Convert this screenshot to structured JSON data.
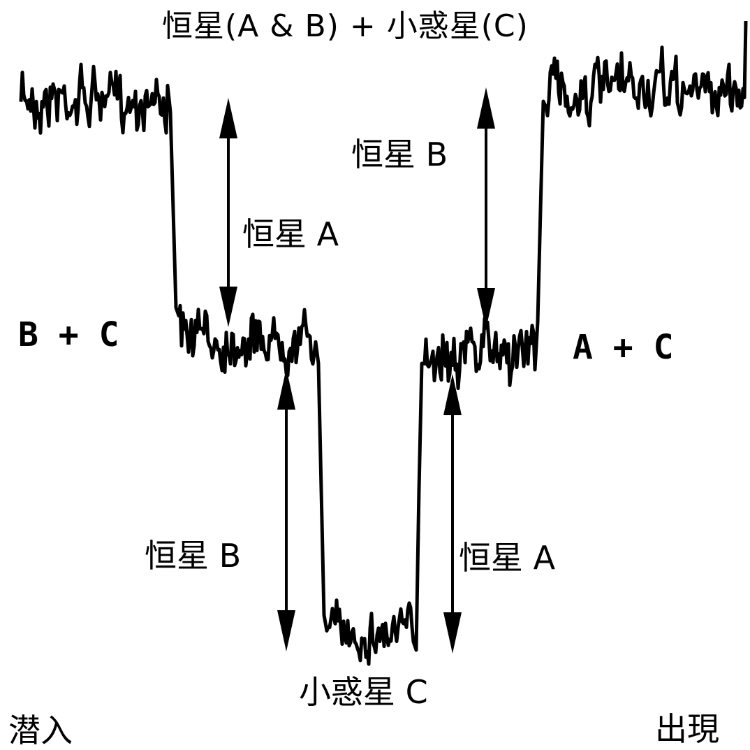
{
  "title": "恒星(A & B) + 小惑星(C)",
  "labels": {
    "star_b_upper": "恒星 B",
    "star_a_upper": "恒星 A",
    "b_plus_c": "B + C",
    "a_plus_c": "A + C",
    "star_b_lower": "恒星 B",
    "star_a_lower": "恒星 A",
    "asteroid_c": "小惑星 C",
    "ingress": "潜入",
    "egress": "出現"
  },
  "colors": {
    "line": "#000000",
    "background": "#ffffff"
  }
}
